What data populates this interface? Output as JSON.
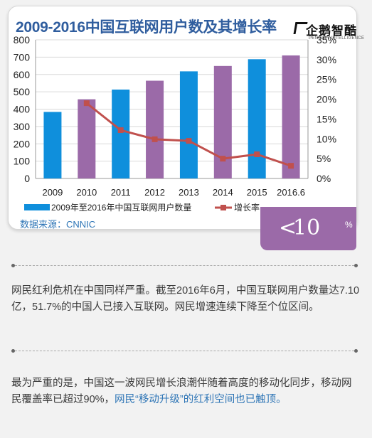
{
  "chart_data": {
    "type": "bar+line",
    "title": "2009-2016中国互联网用户数及其增长率",
    "categories": [
      "2009",
      "2010",
      "2011",
      "2012",
      "2013",
      "2014",
      "2015",
      "2016.6"
    ],
    "series": [
      {
        "name": "2009年至2016年中国互联网用户数量",
        "type": "bar",
        "axis": "left",
        "values": [
          384,
          457,
          513,
          564,
          618,
          649,
          688,
          710
        ]
      },
      {
        "name": "增长率",
        "type": "line",
        "axis": "right",
        "values": [
          null,
          19.0,
          12.2,
          9.9,
          9.5,
          5.0,
          6.1,
          3.2
        ]
      }
    ],
    "ylim": [
      0,
      800
    ],
    "y_ticks": [
      0,
      100,
      200,
      300,
      400,
      500,
      600,
      700,
      800
    ],
    "y2lim": [
      0,
      35
    ],
    "y2_ticks": [
      "0%",
      "5%",
      "10%",
      "15%",
      "20%",
      "25%",
      "30%",
      "35%"
    ],
    "grid": true,
    "legend_position": "bottom",
    "colors": {
      "bar_even": "#0f8fdc",
      "bar_odd": "#9b6aa8",
      "line": "#c0504d",
      "title": "#2f5d9e"
    }
  },
  "logo": {
    "text": "企鹅智酷",
    "subtext": "PENGUIN INTELLIGENCE"
  },
  "source": "数据来源：CNNIC",
  "badge": {
    "lt": "<",
    "number": "10",
    "unit": "%",
    "color": "#9b6aa8"
  },
  "paragraphs": {
    "p1": "网民红利危机在中国同样严重。截至2016年6月，中国互联网用户数量达7.10亿，51.7%的中国人已接入互联网。网民增速连续下降至个位区间。",
    "p2_plain": "最为严重的是，中国这一波网民增长浪潮伴随着高度的移动化同步，移动网民覆盖率已超过90%，",
    "p2_highlight": "网民“移动升级”的红利空间也已触顶。"
  }
}
